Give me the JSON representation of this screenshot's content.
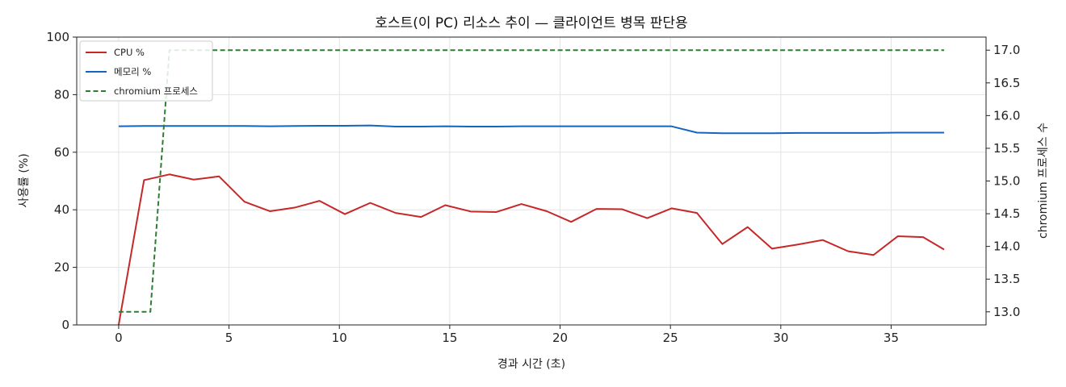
{
  "chart_data": {
    "type": "line",
    "title": "호스트(이 PC) 리소스 추이 — 클라이언트 병목 판단용",
    "xlabel": "경과 시간 (초)",
    "ylabel": "사용률 (%)",
    "y2label": "chromium 프로세스 수",
    "xlim": [
      -1.9,
      39.3
    ],
    "ylim": [
      0,
      100
    ],
    "y2lim": [
      12.8,
      17.2
    ],
    "xticks": [
      0,
      5,
      10,
      15,
      20,
      25,
      30,
      35
    ],
    "yticks": [
      0,
      20,
      40,
      60,
      80,
      100
    ],
    "y2ticks": [
      13.0,
      13.5,
      14.0,
      14.5,
      15.0,
      15.5,
      16.0,
      16.5,
      17.0
    ],
    "y2tick_labels": [
      "13.0",
      "13.5",
      "14.0",
      "14.5",
      "15.0",
      "15.5",
      "16.0",
      "16.5",
      "17.0"
    ],
    "grid": true,
    "legend_position": "top-left",
    "colors": {
      "cpu": "#c62828",
      "memory": "#1565c0",
      "process": "#2e7d32"
    },
    "series": [
      {
        "name": "CPU %",
        "axis": "left",
        "style": "solid",
        "x": [
          0.0,
          1.15,
          2.3,
          3.4,
          4.55,
          5.7,
          6.85,
          8.0,
          9.1,
          10.25,
          11.4,
          12.55,
          13.7,
          14.8,
          15.95,
          17.1,
          18.25,
          19.4,
          20.5,
          21.65,
          22.8,
          23.95,
          25.05,
          26.2,
          27.35,
          28.5,
          29.6,
          30.75,
          31.9,
          33.05,
          34.2,
          35.3,
          36.45,
          37.4
        ],
        "values": [
          0,
          50.3,
          52.3,
          50.5,
          51.6,
          42.8,
          39.5,
          40.8,
          43.1,
          38.5,
          42.4,
          38.9,
          37.5,
          41.6,
          39.4,
          39.2,
          42.0,
          39.5,
          35.8,
          40.3,
          40.2,
          37.1,
          40.5,
          38.9,
          28.1,
          34.0,
          26.5,
          27.9,
          29.5,
          25.6,
          24.3,
          30.8,
          30.5,
          26.2
        ]
      },
      {
        "name": "메모리 %",
        "axis": "left",
        "style": "solid",
        "x": [
          0.0,
          1.15,
          2.3,
          3.4,
          4.55,
          5.7,
          6.85,
          8.0,
          9.1,
          10.25,
          11.4,
          12.55,
          13.7,
          14.8,
          15.95,
          17.1,
          18.25,
          19.4,
          20.5,
          21.65,
          22.8,
          23.95,
          25.05,
          26.2,
          27.35,
          28.5,
          29.6,
          30.75,
          31.9,
          33.05,
          34.2,
          35.3,
          36.45,
          37.4
        ],
        "values": [
          69.0,
          69.1,
          69.1,
          69.1,
          69.1,
          69.1,
          69.0,
          69.1,
          69.2,
          69.2,
          69.3,
          68.9,
          68.9,
          69.0,
          68.9,
          68.9,
          69.0,
          69.0,
          69.0,
          69.0,
          69.0,
          69.0,
          69.0,
          66.8,
          66.6,
          66.6,
          66.6,
          66.7,
          66.7,
          66.7,
          66.7,
          66.8,
          66.8,
          66.8
        ]
      },
      {
        "name": "chromium 프로세스",
        "axis": "right",
        "style": "dashed",
        "x": [
          0.0,
          1.15,
          2.3,
          3.4,
          4.55,
          5.7,
          6.85,
          8.0,
          9.1,
          10.25,
          11.4,
          12.55,
          13.7,
          14.8,
          15.95,
          17.1,
          18.25,
          19.4,
          20.5,
          21.65,
          22.8,
          23.95,
          25.05,
          26.2,
          27.35,
          28.5,
          29.6,
          30.75,
          31.9,
          33.05,
          34.2,
          35.3,
          36.45,
          37.4
        ],
        "values": [
          13,
          13,
          17,
          17,
          17,
          17,
          17,
          17,
          17,
          17,
          17,
          17,
          17,
          17,
          17,
          17,
          17,
          17,
          17,
          17,
          17,
          17,
          17,
          17,
          17,
          17,
          17,
          17,
          17,
          17,
          17,
          17,
          17,
          17
        ]
      }
    ]
  }
}
